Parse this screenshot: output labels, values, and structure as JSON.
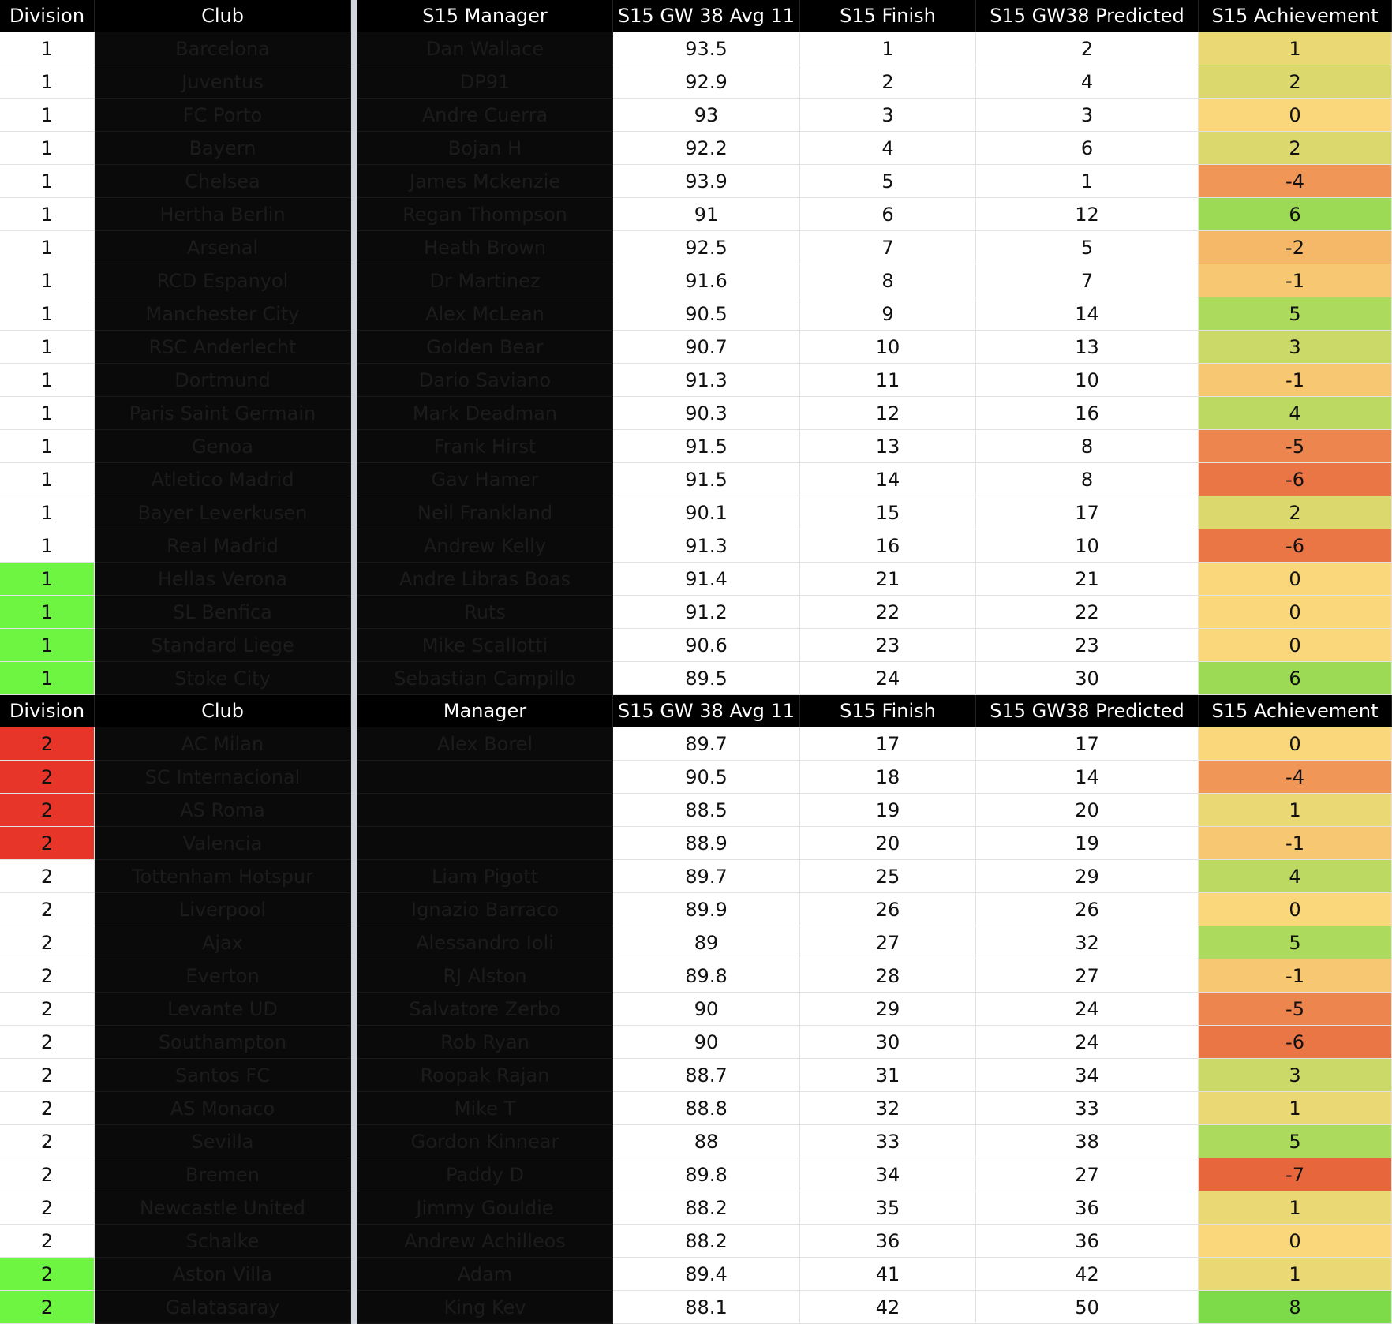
{
  "tables": [
    {
      "headers": [
        "Division",
        "Club",
        "S15 Manager",
        "S15 GW 38 Avg 11",
        "S15 Finish",
        "S15 GW38 Predicted",
        "S15 Achievement"
      ],
      "division_colors": [
        "#ffffff",
        "#ffffff",
        "#ffffff",
        "#ffffff",
        "#ffffff",
        "#ffffff",
        "#ffffff",
        "#ffffff",
        "#ffffff",
        "#ffffff",
        "#ffffff",
        "#ffffff",
        "#ffffff",
        "#ffffff",
        "#ffffff",
        "#ffffff",
        "#6ef542",
        "#6ef542",
        "#6ef542",
        "#6ef542"
      ],
      "rows": [
        [
          1,
          "Barcelona",
          "Dan Wallace",
          93.5,
          1,
          2,
          1
        ],
        [
          1,
          "Juventus",
          "DP91",
          92.9,
          2,
          4,
          2
        ],
        [
          1,
          "FC Porto",
          "Andre Cuerra",
          93,
          3,
          3,
          0
        ],
        [
          1,
          "Bayern",
          "Bojan H",
          92.2,
          4,
          6,
          2
        ],
        [
          1,
          "Chelsea",
          "James Mckenzie",
          93.9,
          5,
          1,
          -4
        ],
        [
          1,
          "Hertha Berlin",
          "Regan Thompson",
          91,
          6,
          12,
          6
        ],
        [
          1,
          "Arsenal",
          "Heath Brown",
          92.5,
          7,
          5,
          -2
        ],
        [
          1,
          "RCD Espanyol",
          "Dr Martinez",
          91.6,
          8,
          7,
          -1
        ],
        [
          1,
          "Manchester City",
          "Alex McLean",
          90.5,
          9,
          14,
          5
        ],
        [
          1,
          "RSC Anderlecht",
          "Golden Bear",
          90.7,
          10,
          13,
          3
        ],
        [
          1,
          "Dortmund",
          "Dario Saviano",
          91.3,
          11,
          10,
          -1
        ],
        [
          1,
          "Paris Saint Germain",
          "Mark Deadman",
          90.3,
          12,
          16,
          4
        ],
        [
          1,
          "Genoa",
          "Frank Hirst",
          91.5,
          13,
          8,
          -5
        ],
        [
          1,
          "Atletico Madrid",
          "Gav Hamer",
          91.5,
          14,
          8,
          -6
        ],
        [
          1,
          "Bayer Leverkusen",
          "Neil Frankland",
          90.1,
          15,
          17,
          2
        ],
        [
          1,
          "Real Madrid",
          "Andrew Kelly",
          91.3,
          16,
          10,
          -6
        ],
        [
          1,
          "Hellas Verona",
          "Andre Libras Boas",
          91.4,
          21,
          21,
          0
        ],
        [
          1,
          "SL Benfica",
          "Ruts",
          91.2,
          22,
          22,
          0
        ],
        [
          1,
          "Standard Liege",
          "Mike Scallotti",
          90.6,
          23,
          23,
          0
        ],
        [
          1,
          "Stoke City",
          "Sebastian Campillo",
          89.5,
          24,
          30,
          6
        ]
      ]
    },
    {
      "headers": [
        "Division",
        "Club",
        "Manager",
        "S15 GW 38 Avg 11",
        "S15 Finish",
        "S15 GW38 Predicted",
        "S15 Achievement"
      ],
      "division_colors": [
        "#e8352a",
        "#e8352a",
        "#e8352a",
        "#e8352a",
        "#ffffff",
        "#ffffff",
        "#ffffff",
        "#ffffff",
        "#ffffff",
        "#ffffff",
        "#ffffff",
        "#ffffff",
        "#ffffff",
        "#ffffff",
        "#ffffff",
        "#ffffff",
        "#6ef542",
        "#6ef542"
      ],
      "rows": [
        [
          2,
          "AC Milan",
          "Alex Borel",
          89.7,
          17,
          17,
          0
        ],
        [
          2,
          "SC Internacional",
          null,
          90.5,
          18,
          14,
          -4
        ],
        [
          2,
          "AS Roma",
          null,
          88.5,
          19,
          20,
          1
        ],
        [
          2,
          "Valencia",
          null,
          88.9,
          20,
          19,
          -1
        ],
        [
          2,
          "Tottenham Hotspur",
          "Liam Pigott",
          89.7,
          25,
          29,
          4
        ],
        [
          2,
          "Liverpool",
          "Ignazio Barraco",
          89.9,
          26,
          26,
          0
        ],
        [
          2,
          "Ajax",
          "Alessandro Ioli",
          89,
          27,
          32,
          5
        ],
        [
          2,
          "Everton",
          "RJ Alston",
          89.8,
          28,
          27,
          -1
        ],
        [
          2,
          "Levante UD",
          "Salvatore Zerbo",
          90,
          29,
          24,
          -5
        ],
        [
          2,
          "Southampton",
          "Rob Ryan",
          90,
          30,
          24,
          -6
        ],
        [
          2,
          "Santos FC",
          "Roopak Rajan",
          88.7,
          31,
          34,
          3
        ],
        [
          2,
          "AS Monaco",
          "Mike T",
          88.8,
          32,
          33,
          1
        ],
        [
          2,
          "Sevilla",
          "Gordon Kinnear",
          88,
          33,
          38,
          5
        ],
        [
          2,
          "Bremen",
          "Paddy D",
          89.8,
          34,
          27,
          -7
        ],
        [
          2,
          "Newcastle United",
          "Jimmy Gouldie",
          88.2,
          35,
          36,
          1
        ],
        [
          2,
          "Schalke",
          "Andrew Achilleos",
          88.2,
          36,
          36,
          0
        ],
        [
          2,
          "Aston Villa",
          "Adam",
          89.4,
          41,
          42,
          1
        ],
        [
          2,
          "Galatasaray",
          "King Kev",
          88.1,
          42,
          50,
          8
        ]
      ]
    }
  ]
}
